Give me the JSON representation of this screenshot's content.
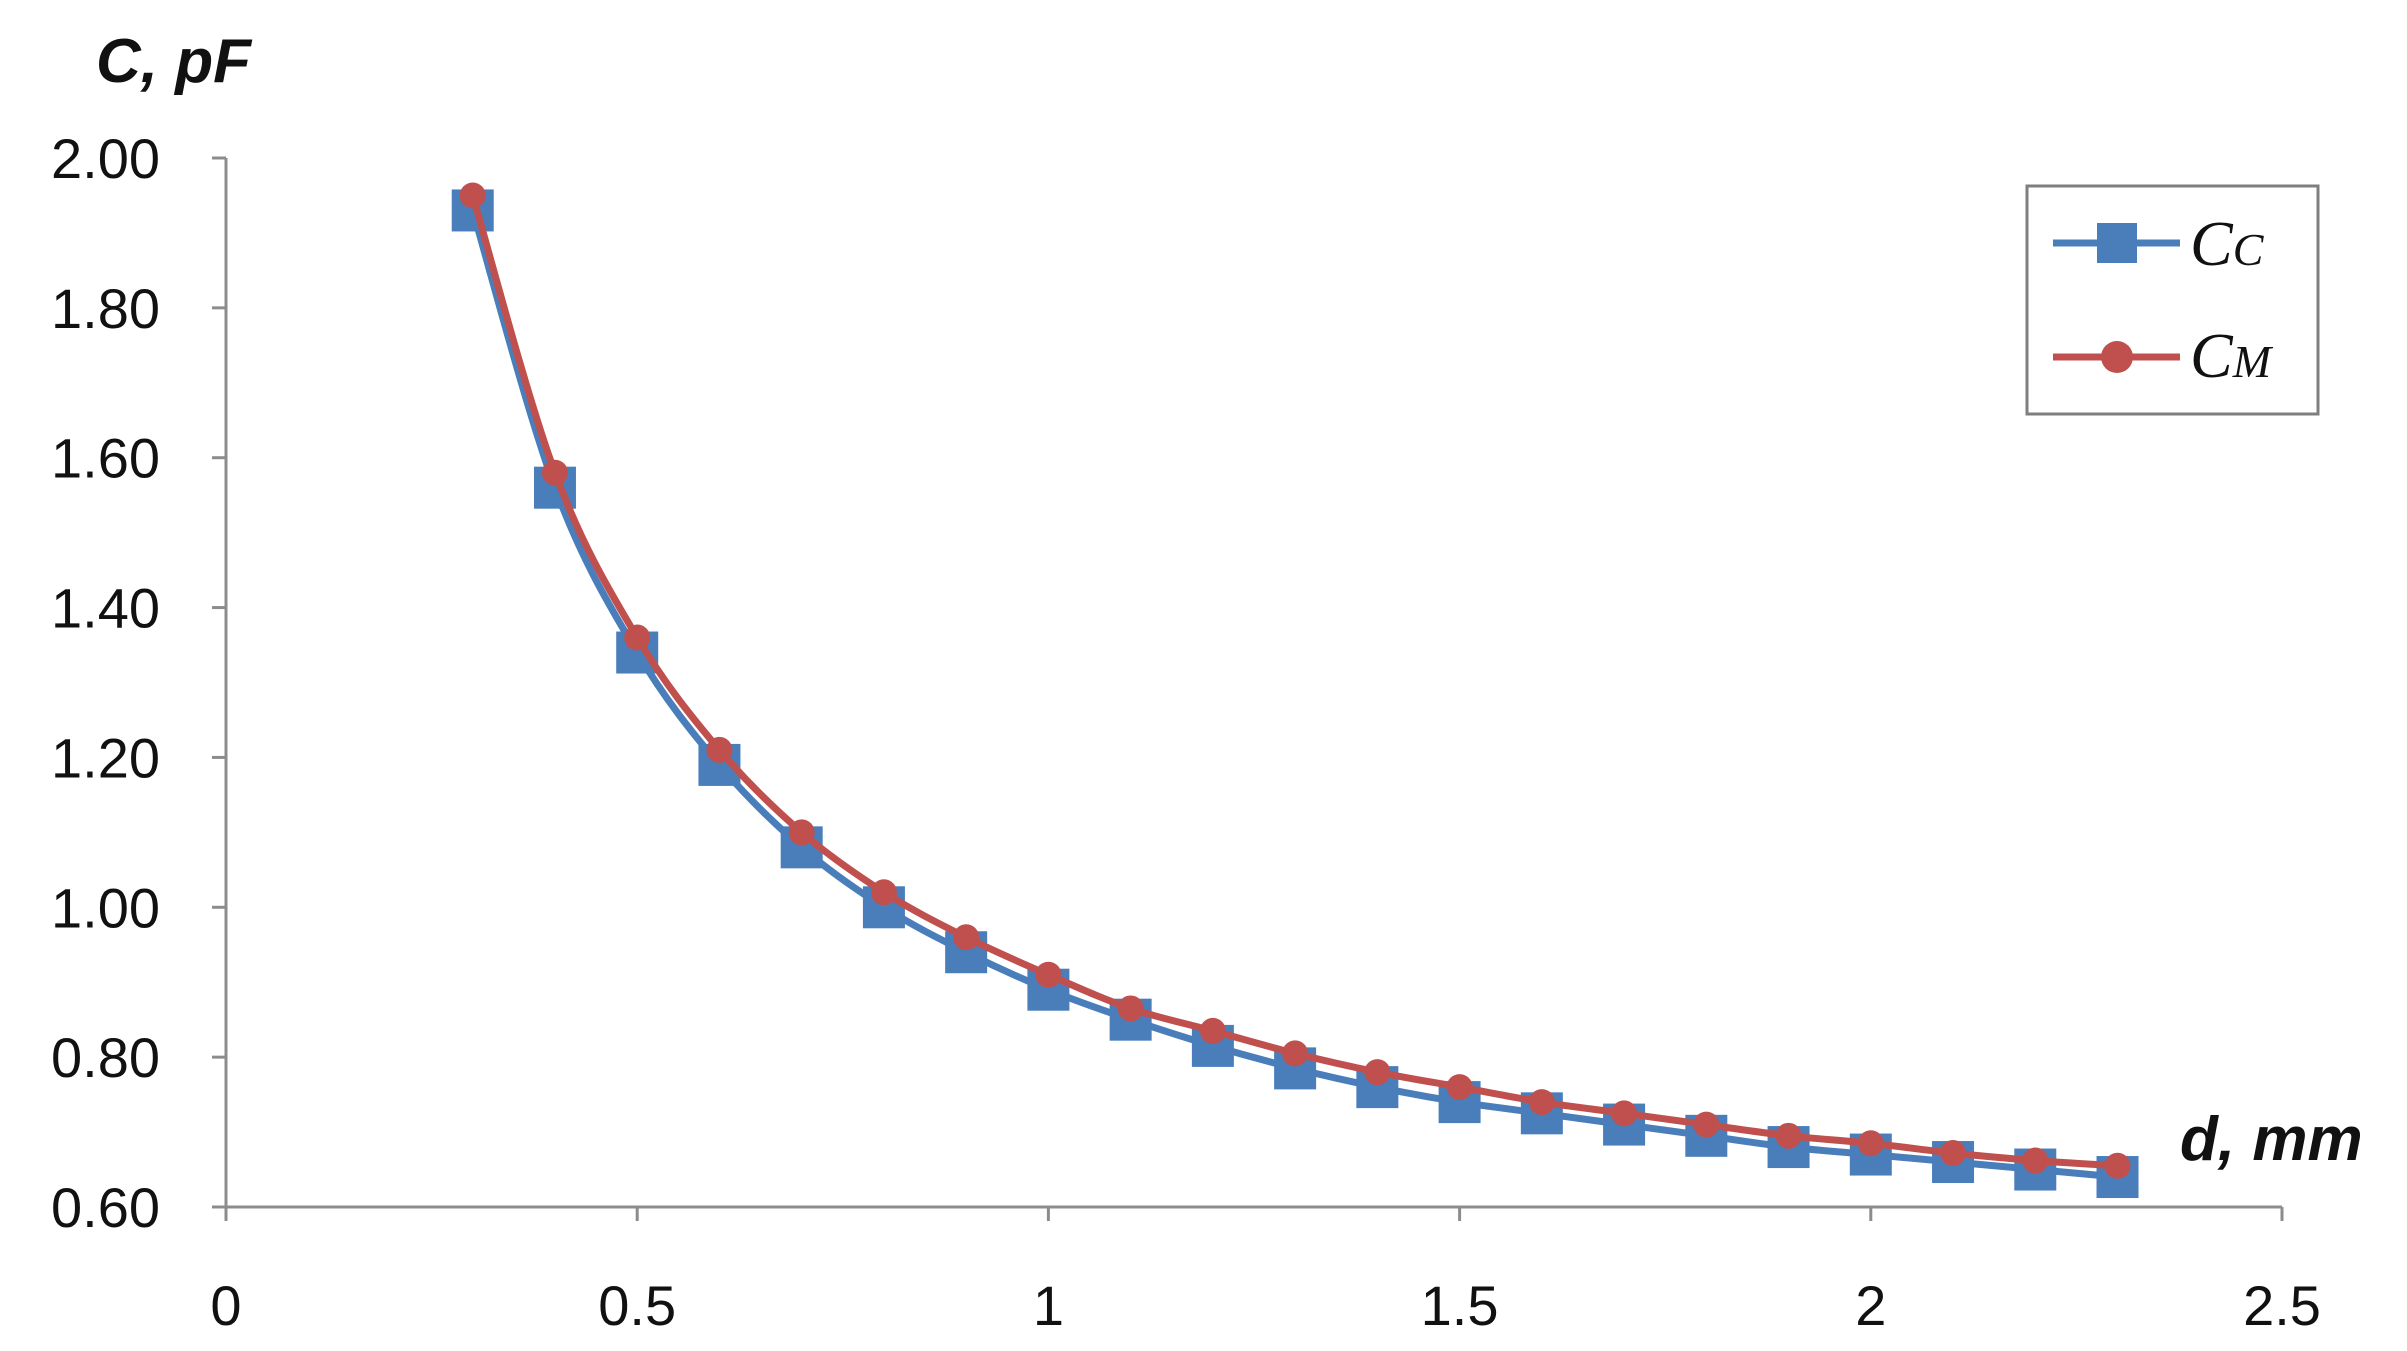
{
  "chart_data": {
    "type": "line",
    "title": "",
    "ylabel": "C, pF",
    "xlabel": "d,  mm",
    "xlim": [
      0,
      2.5
    ],
    "ylim": [
      0.6,
      2.0
    ],
    "xticks": [
      "0",
      "0.5",
      "1",
      "1.5",
      "2",
      "2.5"
    ],
    "yticks": [
      "0.60",
      "0.80",
      "1.00",
      "1.20",
      "1.40",
      "1.60",
      "1.80",
      "2.00"
    ],
    "grid": false,
    "legend_position": "top-right",
    "x": [
      0.3,
      0.4,
      0.5,
      0.6,
      0.7,
      0.8,
      0.9,
      1.0,
      1.1,
      1.2,
      1.3,
      1.4,
      1.5,
      1.6,
      1.7,
      1.8,
      1.9,
      2.0,
      2.1,
      2.2,
      2.3
    ],
    "series": [
      {
        "name": "C",
        "name_subscript": "C",
        "color": "#4a7ebb",
        "marker": "square",
        "values": [
          1.93,
          1.56,
          1.34,
          1.19,
          1.08,
          1.0,
          0.94,
          0.89,
          0.85,
          0.815,
          0.785,
          0.76,
          0.74,
          0.725,
          0.71,
          0.695,
          0.68,
          0.67,
          0.66,
          0.65,
          0.64
        ]
      },
      {
        "name": "C",
        "name_subscript": "M",
        "color": "#c0504d",
        "marker": "circle",
        "values": [
          1.95,
          1.58,
          1.36,
          1.21,
          1.1,
          1.02,
          0.96,
          0.91,
          0.865,
          0.835,
          0.805,
          0.78,
          0.76,
          0.74,
          0.725,
          0.71,
          0.695,
          0.685,
          0.672,
          0.662,
          0.655
        ]
      }
    ]
  }
}
